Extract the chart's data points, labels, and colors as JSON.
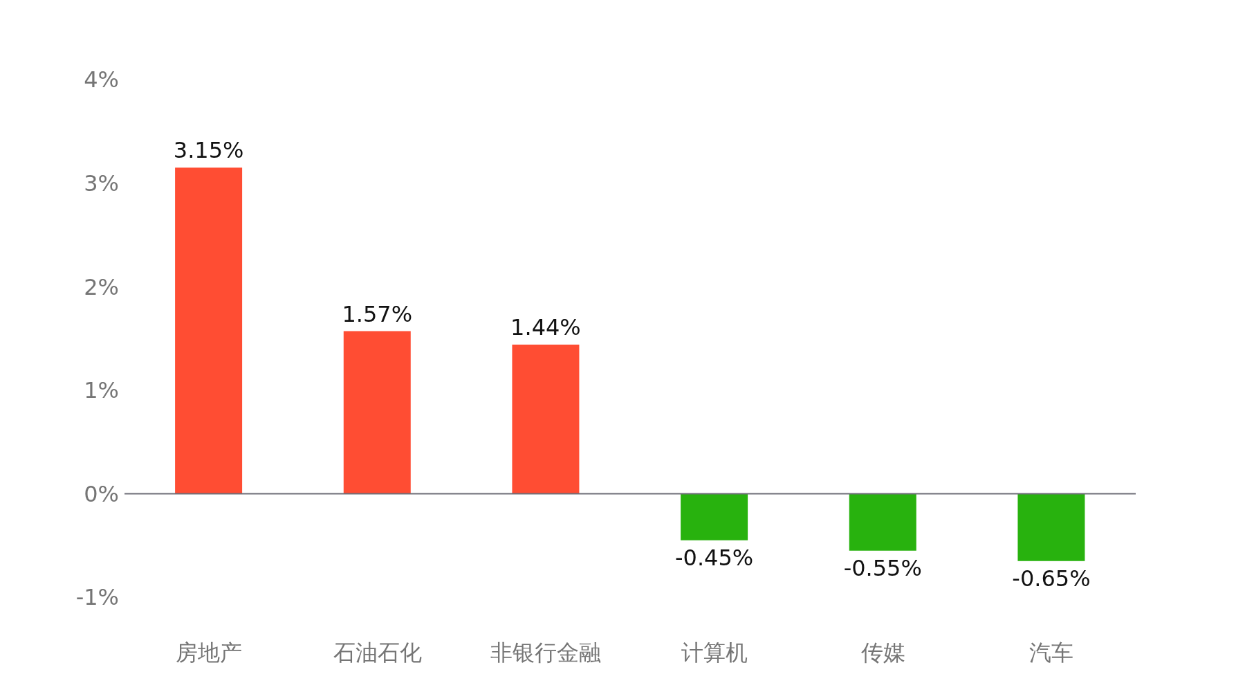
{
  "chart_data": {
    "type": "bar",
    "categories": [
      "房地产",
      "石油石化",
      "非银行金融",
      "计算机",
      "传媒",
      "汽车"
    ],
    "values": [
      3.15,
      1.57,
      1.44,
      -0.45,
      -0.55,
      -0.65
    ],
    "colors": [
      "#ff4d33",
      "#ff4d33",
      "#ff4d33",
      "#28b20e",
      "#28b20e",
      "#28b20e"
    ],
    "value_labels": [
      "3.15%",
      "1.57%",
      "1.44%",
      "-0.45%",
      "-0.55%",
      "-0.65%"
    ],
    "ylim": [
      -1,
      4
    ],
    "yticks": [
      {
        "value": -1,
        "label": "-1%"
      },
      {
        "value": 0,
        "label": "0%"
      },
      {
        "value": 1,
        "label": "1%"
      },
      {
        "value": 2,
        "label": "2%"
      },
      {
        "value": 3,
        "label": "3%"
      },
      {
        "value": 4,
        "label": "4%"
      }
    ],
    "ref_lines": [
      {
        "axis": "y",
        "value": 0,
        "color": "#6e6e78"
      }
    ],
    "grid": false,
    "legend": false
  }
}
